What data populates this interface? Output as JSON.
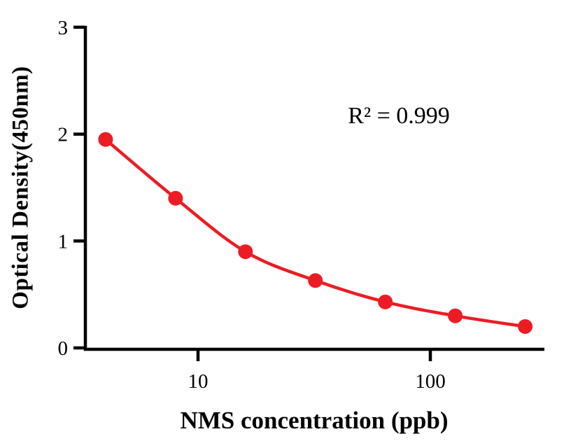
{
  "chart_data": {
    "type": "scatter",
    "title": "",
    "xlabel": "NMS concentration (ppb)",
    "ylabel": "Optical Density(450nm)",
    "annotation": "R² = 0.999",
    "x_scale": "log10",
    "x": [
      4,
      8,
      16,
      32,
      64,
      128,
      256
    ],
    "y": [
      1.95,
      1.4,
      0.9,
      0.63,
      0.43,
      0.3,
      0.2
    ],
    "x_ticks": [
      10,
      100
    ],
    "y_ticks": [
      0,
      1,
      2,
      3
    ],
    "xlim": [
      3.3,
      310
    ],
    "ylim": [
      0,
      3
    ],
    "grid": false,
    "legend": "none",
    "marker_color": "#EC1C24",
    "line_color": "#EC1C24",
    "axis_color": "#000000",
    "background_color": "#ffffff",
    "curve_fit": "smooth decreasing sigmoidal standard curve through points"
  }
}
